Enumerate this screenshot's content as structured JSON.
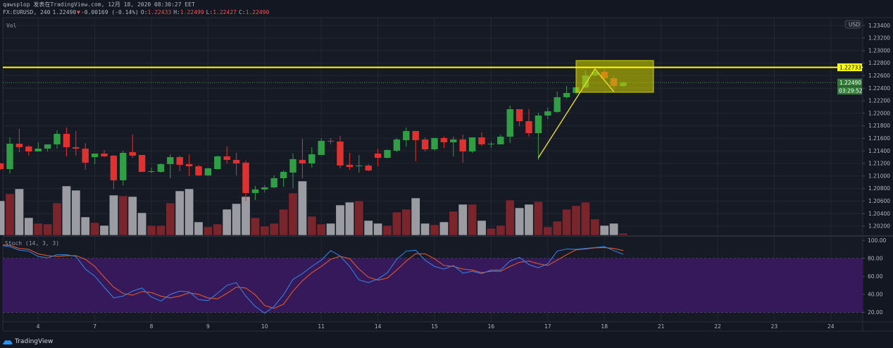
{
  "header": {
    "line1": "qawsplop 发表在TradingView.com, 12月 18, 2020 08:30:27 EET",
    "symbol": "FX:EURUSD, 240",
    "last": "1.22490",
    "change_arrow": "▼",
    "change": "-0.00169 (-0.14%)",
    "o_label": "O:",
    "o": "1.22433",
    "h_label": "H:",
    "h": "1.22499",
    "l_label": "L:",
    "l": "1.22427",
    "c_label": "C:",
    "c": "1.22490"
  },
  "panes": {
    "volume_label": "Vol",
    "stoch_label": "Stoch (14, 3, 3)"
  },
  "footer": {
    "brand": "TradingView"
  },
  "colors": {
    "up": "#2f9e44",
    "down": "#e03131",
    "vol_up": "#7a242b",
    "vol_down": "#9b9ca1",
    "k": "#2f7fe0",
    "d": "#e0572a",
    "band": "#35195a",
    "hline": "#ffff00",
    "box": "#c8c800",
    "bg": "#131722"
  },
  "chart_data": {
    "type": "candlestick",
    "symbol": "FX:EURUSD",
    "interval": "240",
    "currency": "USD",
    "price_ticks": [
      "1.23400",
      "1.23200",
      "1.23000",
      "1.22800",
      "1.22600",
      "1.22400",
      "1.22200",
      "1.22000",
      "1.21800",
      "1.21600",
      "1.21400",
      "1.21200",
      "1.21000",
      "1.20800",
      "1.20600",
      "1.20400",
      "1.20200"
    ],
    "time_ticks": [
      {
        "label": "4",
        "index": 4
      },
      {
        "label": "7",
        "index": 10
      },
      {
        "label": "8",
        "index": 16
      },
      {
        "label": "9",
        "index": 22
      },
      {
        "label": "10",
        "index": 28
      },
      {
        "label": "11",
        "index": 34
      },
      {
        "label": "14",
        "index": 40
      },
      {
        "label": "15",
        "index": 46
      },
      {
        "label": "16",
        "index": 52
      },
      {
        "label": "17",
        "index": 58
      },
      {
        "label": "18",
        "index": 64
      },
      {
        "label": "21",
        "index": 70
      },
      {
        "label": "22",
        "index": 76
      },
      {
        "label": "23",
        "index": 82
      },
      {
        "label": "24",
        "index": 88
      }
    ],
    "ohlc": [
      [
        1.212,
        1.2121,
        1.21099,
        1.2111
      ],
      [
        1.2111,
        1.21616,
        1.21043,
        1.21515
      ],
      [
        1.21515,
        1.21751,
        1.2138,
        1.21459
      ],
      [
        1.2147,
        1.21492,
        1.21324,
        1.21391
      ],
      [
        1.21391,
        1.21537,
        1.21391,
        1.21436
      ],
      [
        1.21436,
        1.21504,
        1.21391,
        1.21504
      ],
      [
        1.21504,
        1.21728,
        1.21436,
        1.21672
      ],
      [
        1.21672,
        1.21773,
        1.21313,
        1.21459
      ],
      [
        1.21459,
        1.21717,
        1.21324,
        1.21436
      ],
      [
        1.21436,
        1.21526,
        1.21099,
        1.21212
      ],
      [
        1.21301,
        1.21358,
        1.21189,
        1.21358
      ],
      [
        1.21358,
        1.21414,
        1.21301,
        1.21313
      ],
      [
        1.21324,
        1.21335,
        1.20785,
        1.20931
      ],
      [
        1.20931,
        1.21403,
        1.20852,
        1.21369
      ],
      [
        1.2138,
        1.21661,
        1.2129,
        1.21324
      ],
      [
        1.21335,
        1.21335,
        1.21065,
        1.21065
      ],
      [
        1.21065,
        1.21133,
        1.21043,
        1.21077
      ],
      [
        1.21065,
        1.212,
        1.21054,
        1.21189
      ],
      [
        1.21189,
        1.21346,
        1.20964,
        1.21301
      ],
      [
        1.21301,
        1.21324,
        1.21077,
        1.21178
      ],
      [
        1.21189,
        1.21346,
        1.20998,
        1.21155
      ],
      [
        1.21155,
        1.21178,
        1.20998,
        1.21009
      ],
      [
        1.21009,
        1.21133,
        1.20998,
        1.21122
      ],
      [
        1.2111,
        1.21324,
        1.21099,
        1.21313
      ],
      [
        1.21313,
        1.2147,
        1.212,
        1.21256
      ],
      [
        1.21256,
        1.21369,
        1.21009,
        1.212
      ],
      [
        1.21212,
        1.21245,
        1.20594,
        1.20728
      ],
      [
        1.20728,
        1.20841,
        1.20616,
        1.20785
      ],
      [
        1.20785,
        1.20852,
        1.2074,
        1.20818
      ],
      [
        1.20818,
        1.21009,
        1.20807,
        1.20964
      ],
      [
        1.20964,
        1.21088,
        1.2083,
        1.21065
      ],
      [
        1.21054,
        1.21358,
        1.20807,
        1.21268
      ],
      [
        1.21256,
        1.21594,
        1.20964,
        1.212
      ],
      [
        1.212,
        1.21459,
        1.21133,
        1.21346
      ],
      [
        1.21335,
        1.21605,
        1.21335,
        1.2156
      ],
      [
        1.2156,
        1.21605,
        1.21504,
        1.21549
      ],
      [
        1.21549,
        1.21639,
        1.21122,
        1.21167
      ],
      [
        1.21178,
        1.21369,
        1.21099,
        1.21144
      ],
      [
        1.21155,
        1.21335,
        1.21054,
        1.21167
      ],
      [
        1.21167,
        1.21189,
        1.21077,
        1.21088
      ],
      [
        1.21358,
        1.21436,
        1.21155,
        1.2129
      ],
      [
        1.2129,
        1.21425,
        1.21279,
        1.21414
      ],
      [
        1.21403,
        1.21605,
        1.2138,
        1.21582
      ],
      [
        1.21571,
        1.21773,
        1.2147,
        1.21717
      ],
      [
        1.21717,
        1.21717,
        1.21234,
        1.21571
      ],
      [
        1.21582,
        1.21616,
        1.21391,
        1.21425
      ],
      [
        1.21425,
        1.21605,
        1.21403,
        1.21605
      ],
      [
        1.21605,
        1.21627,
        1.21447,
        1.21537
      ],
      [
        1.21537,
        1.21627,
        1.21313,
        1.21582
      ],
      [
        1.21582,
        1.21661,
        1.21212,
        1.21391
      ],
      [
        1.21391,
        1.21616,
        1.21369,
        1.21616
      ],
      [
        1.21616,
        1.21695,
        1.21481,
        1.21504
      ],
      [
        1.21504,
        1.21549,
        1.21447,
        1.21515
      ],
      [
        1.21504,
        1.21661,
        1.21504,
        1.21627
      ],
      [
        1.21627,
        1.22122,
        1.21526,
        1.22065
      ],
      [
        1.22065,
        1.22065,
        1.21796,
        1.21874
      ],
      [
        1.21874,
        1.22065,
        1.21627,
        1.21683
      ],
      [
        1.21683,
        1.22009,
        1.21256,
        1.21964
      ],
      [
        1.21964,
        1.22088,
        1.21908,
        1.22032
      ],
      [
        1.22021,
        1.22346,
        1.22009,
        1.22256
      ],
      [
        1.22256,
        1.22436,
        1.22234,
        1.22324
      ],
      [
        1.22324,
        1.22459,
        1.22301,
        1.22414
      ],
      [
        1.22414,
        1.22683,
        1.22391,
        1.22605
      ],
      [
        1.22605,
        1.22706,
        1.22582,
        1.22661
      ],
      [
        1.22661,
        1.22706,
        1.22537,
        1.2256
      ],
      [
        1.2256,
        1.22593,
        1.22391,
        1.22436
      ],
      [
        1.22433,
        1.22499,
        1.22427,
        1.2249
      ]
    ],
    "volume": [
      49,
      59,
      66,
      25,
      17,
      16,
      46,
      70,
      64,
      26,
      18,
      14,
      57,
      56,
      55,
      32,
      14,
      14,
      46,
      63,
      66,
      19,
      12,
      16,
      37,
      45,
      55,
      25,
      13,
      17,
      37,
      60,
      77,
      27,
      16,
      17,
      43,
      47,
      49,
      21,
      17,
      14,
      33,
      37,
      53,
      17,
      15,
      19,
      34,
      44,
      44,
      21,
      10,
      14,
      50,
      39,
      44,
      48,
      12,
      20,
      37,
      42,
      47,
      23,
      14,
      17,
      3
    ],
    "stoch": {
      "k": [
        94,
        93,
        89,
        88,
        82,
        80.5,
        84,
        84,
        82,
        68,
        60,
        48,
        36,
        38,
        43.5,
        47,
        37,
        32.5,
        40,
        43.5,
        42.7,
        34,
        33,
        41,
        50,
        53,
        38,
        26.5,
        19,
        26.5,
        39.5,
        56.5,
        63,
        71,
        78,
        88.6,
        82.6,
        71,
        56,
        53,
        57,
        64,
        79,
        88,
        89,
        78,
        71,
        68,
        72,
        63.5,
        65.6,
        63,
        67,
        67,
        77,
        81,
        73,
        69.5,
        74,
        88,
        90.4,
        90,
        91,
        92,
        93,
        88.6,
        84.4
      ],
      "d": [
        95,
        94.4,
        91,
        90,
        85,
        83,
        82,
        83,
        83,
        79,
        71,
        59,
        48,
        41,
        39,
        43,
        42,
        38,
        36,
        38,
        41.6,
        40,
        36,
        35,
        41,
        48,
        47,
        39.5,
        27.5,
        24.4,
        29,
        43.5,
        55,
        64,
        71,
        79,
        82.3,
        79.5,
        68,
        59,
        55.7,
        58,
        67,
        77,
        85,
        85,
        79.5,
        72,
        71,
        68,
        67,
        64,
        65.6,
        65.6,
        71,
        75.5,
        77,
        74,
        72,
        78,
        84,
        89.5,
        90.4,
        91.7,
        92,
        91,
        88.6
      ],
      "upper": 80,
      "lower": 20,
      "ticks": [
        "100.00",
        "80.00",
        "60.00",
        "40.00",
        "20.00"
      ]
    },
    "horizontal_line": {
      "price": 1.22733,
      "label": "1.22733"
    },
    "last_price": {
      "price": 1.2249,
      "label": "1.22490",
      "countdown": "03:29:52"
    },
    "trend_line": [
      [
        57,
        1.2129
      ],
      [
        63,
        1.22706
      ],
      [
        65,
        1.22346
      ]
    ],
    "highlight_box": {
      "from_index": 61.0,
      "to_index": 69.2,
      "top": 1.22841,
      "bottom": 1.22335
    }
  }
}
